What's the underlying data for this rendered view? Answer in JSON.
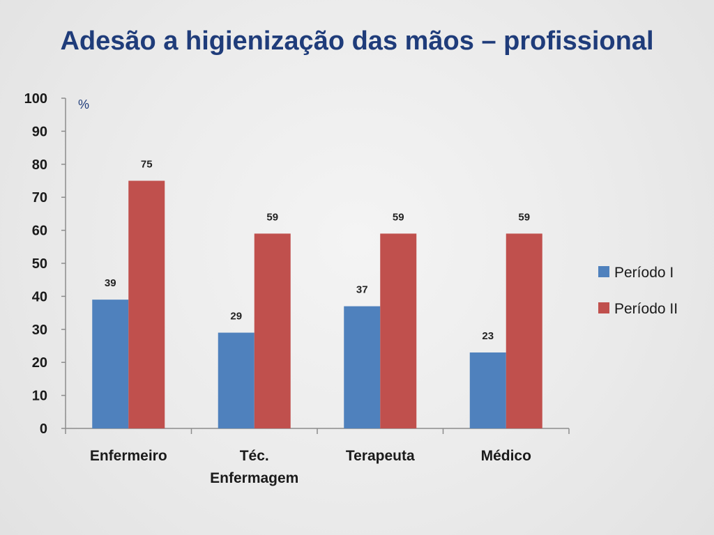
{
  "slide": {
    "title": "Adesão a higienização das mãos – profissional"
  },
  "chart_data": {
    "type": "bar",
    "title": "",
    "unit_label": "%",
    "categories": [
      [
        "Enfermeiro"
      ],
      [
        "Téc.",
        "Enfermagem"
      ],
      [
        "Terapeuta"
      ],
      [
        "Médico"
      ]
    ],
    "series": [
      {
        "name": "Período I",
        "color": "#4f81bd",
        "values": [
          39,
          29,
          37,
          23
        ]
      },
      {
        "name": "Período II",
        "color": "#c0504d",
        "values": [
          75,
          59,
          59,
          59
        ]
      }
    ],
    "ylim": [
      0,
      100
    ],
    "yticks": [
      0,
      10,
      20,
      30,
      40,
      50,
      60,
      70,
      80,
      90,
      100
    ],
    "grid": false,
    "legend_position": "right"
  }
}
